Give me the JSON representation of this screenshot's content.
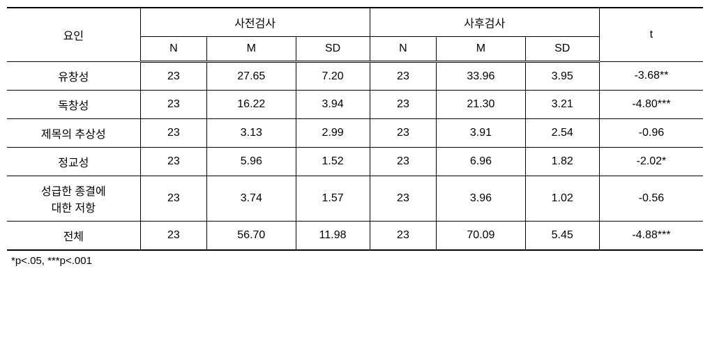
{
  "headers": {
    "factor": "요인",
    "pretest": "사전검사",
    "posttest": "사후검사",
    "n": "N",
    "m": "M",
    "sd": "SD",
    "t": "t"
  },
  "rows": [
    {
      "factor": "유창성",
      "pre_n": "23",
      "pre_m": "27.65",
      "pre_sd": "7.20",
      "post_n": "23",
      "post_m": "33.96",
      "post_sd": "3.95",
      "t": "-3.68**"
    },
    {
      "factor": "독창성",
      "pre_n": "23",
      "pre_m": "16.22",
      "pre_sd": "3.94",
      "post_n": "23",
      "post_m": "21.30",
      "post_sd": "3.21",
      "t": "-4.80***"
    },
    {
      "factor": "제목의 추상성",
      "pre_n": "23",
      "pre_m": "3.13",
      "pre_sd": "2.99",
      "post_n": "23",
      "post_m": "3.91",
      "post_sd": "2.54",
      "t": "-0.96"
    },
    {
      "factor": "정교성",
      "pre_n": "23",
      "pre_m": "5.96",
      "pre_sd": "1.52",
      "post_n": "23",
      "post_m": "6.96",
      "post_sd": "1.82",
      "t": "-2.02*"
    },
    {
      "factor": "성급한 종결에\n대한 저항",
      "pre_n": "23",
      "pre_m": "3.74",
      "pre_sd": "1.57",
      "post_n": "23",
      "post_m": "3.96",
      "post_sd": "1.02",
      "t": "-0.56"
    },
    {
      "factor": "전체",
      "pre_n": "23",
      "pre_m": "56.70",
      "pre_sd": "11.98",
      "post_n": "23",
      "post_m": "70.09",
      "post_sd": "5.45",
      "t": "-4.88***"
    }
  ],
  "footnote": "*p<.05,  ***p<.001",
  "styling": {
    "font_family": "Malgun Gothic",
    "font_size_pt": 12,
    "border_color": "#000000",
    "background_color": "#ffffff",
    "text_color": "#000000",
    "top_border_width": 2,
    "header_bottom_border": "double",
    "col_widths": {
      "factor": 180,
      "n": 90,
      "m": 120,
      "sd": 100,
      "t": 140
    },
    "text_align": "center"
  }
}
